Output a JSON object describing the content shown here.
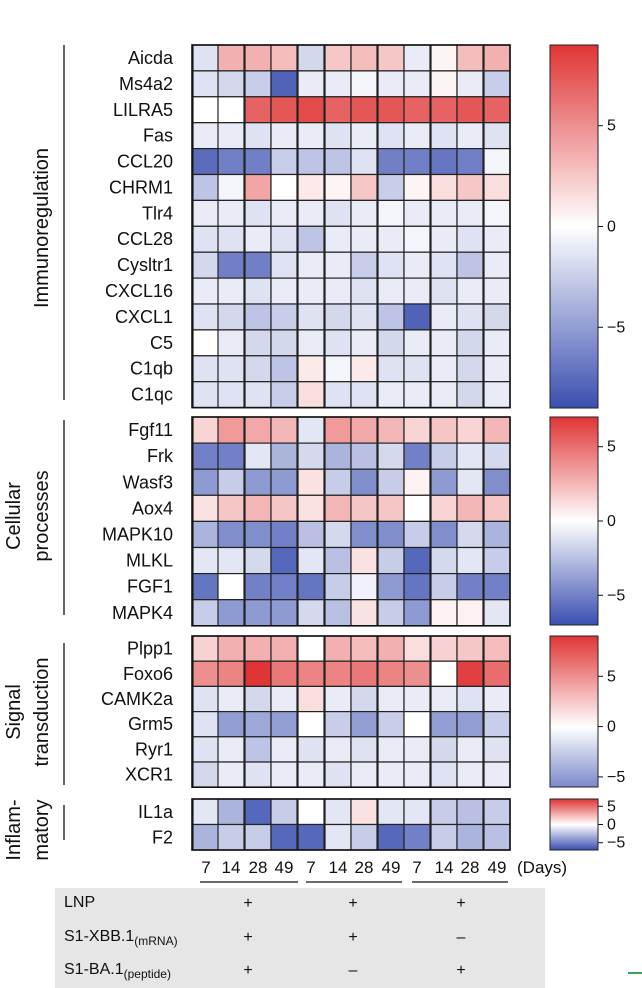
{
  "chart_data": {
    "type": "heatmap",
    "columns": [
      "7",
      "14",
      "28",
      "49",
      "7",
      "14",
      "28",
      "49",
      "7",
      "14",
      "28",
      "49"
    ],
    "columns_unit": "(Days)",
    "colorscale": {
      "low": "#3a4fb0",
      "mid": "#ffffff",
      "high": "#e03535"
    },
    "panels": [
      {
        "name": "Immunoregulation",
        "colorbar": {
          "ticks": [
            5,
            0,
            -5
          ],
          "range": [
            -9,
            9
          ]
        },
        "rows": [
          {
            "gene": "Aicda",
            "values": [
              -1.5,
              3.5,
              3.5,
              3,
              -2,
              2.5,
              3,
              2.5,
              -1,
              0.5,
              3,
              3.5
            ]
          },
          {
            "gene": "Ms4a2",
            "values": [
              -1.5,
              -2,
              -2.5,
              -8,
              -1,
              -1,
              -0.5,
              -1,
              -1,
              0.5,
              -1,
              -2.5
            ]
          },
          {
            "gene": "LILRA5",
            "values": [
              0,
              0,
              7,
              7.5,
              8,
              7,
              7.5,
              7.5,
              7,
              7,
              7.5,
              7
            ]
          },
          {
            "gene": "Fas",
            "values": [
              -1,
              -1,
              -1.5,
              -1,
              -1,
              -1.5,
              -1,
              -1.5,
              -1,
              -1.5,
              -1,
              -1.5
            ]
          },
          {
            "gene": "CCL20",
            "values": [
              -7.5,
              -6.5,
              -6.5,
              -2.5,
              -3,
              -3,
              -1.5,
              -6.5,
              -6.5,
              -7,
              -6.5,
              -0.5
            ]
          },
          {
            "gene": "CHRM1",
            "values": [
              -3,
              -0.5,
              4,
              0,
              1,
              0.5,
              2.5,
              -2.5,
              0.5,
              1.5,
              2.5,
              1.5
            ]
          },
          {
            "gene": "Tlr4",
            "values": [
              -1,
              -1,
              -1.5,
              -1,
              -1,
              -1.5,
              -1,
              -0.5,
              -1,
              -1,
              -1,
              -0.5
            ]
          },
          {
            "gene": "CCL28",
            "values": [
              -1.5,
              -1.5,
              -1,
              -1.5,
              -3,
              -1,
              -1,
              -1,
              -0.5,
              -1,
              -1.5,
              -1
            ]
          },
          {
            "gene": "Cysltr1",
            "values": [
              -2,
              -6.5,
              -6.5,
              -1.5,
              -1,
              -1,
              -2.5,
              -1.5,
              -1,
              -1.5,
              -3,
              -1
            ]
          },
          {
            "gene": "CXCL16",
            "values": [
              -1,
              -1,
              -1.5,
              -1,
              -1,
              -1,
              -1.5,
              -1,
              -1,
              -1.5,
              -1,
              -1
            ]
          },
          {
            "gene": "CXCL1",
            "values": [
              -1.5,
              -2,
              -3,
              -2.5,
              -1.5,
              -2,
              -1.5,
              -3,
              -8,
              -1,
              -1.5,
              -2
            ]
          },
          {
            "gene": "C5",
            "values": [
              0,
              -1,
              -2,
              -2,
              -1,
              -1.5,
              -1,
              -2,
              -1,
              -1,
              -2,
              -1
            ]
          },
          {
            "gene": "C1qb",
            "values": [
              -1.5,
              -1.5,
              -2,
              -3,
              1,
              -0.5,
              1,
              -1.5,
              -1.5,
              -1,
              -2,
              -1
            ]
          },
          {
            "gene": "C1qc",
            "values": [
              -1.5,
              -1.5,
              -1.5,
              -2.5,
              1.5,
              -1.5,
              -1.5,
              -1,
              -1,
              -1,
              -2,
              -1
            ]
          }
        ]
      },
      {
        "name": "Cellular processes",
        "colorbar": {
          "ticks": [
            5,
            0,
            -5
          ],
          "range": [
            -7,
            7
          ]
        },
        "rows": [
          {
            "gene": "Fgf11",
            "values": [
              1.5,
              3.5,
              3,
              2.5,
              -1,
              3.5,
              3,
              2.5,
              1.5,
              2,
              1.5,
              2.5
            ]
          },
          {
            "gene": "Frk",
            "values": [
              -5,
              -5,
              -1,
              -3,
              -1.5,
              -3,
              -2.5,
              -1.5,
              -5,
              -2,
              -1,
              -1.5
            ]
          },
          {
            "gene": "Wasf3",
            "values": [
              -4,
              -2,
              -4,
              -4,
              1,
              -2,
              -4.5,
              -2,
              0.5,
              -4,
              -1,
              -4.5
            ]
          },
          {
            "gene": "Aox4",
            "values": [
              1,
              2,
              2.5,
              2,
              1,
              2.5,
              2,
              2,
              0,
              1.5,
              2.5,
              2
            ]
          },
          {
            "gene": "MAPK10",
            "values": [
              -3,
              -4.5,
              -4.5,
              -5,
              -2.5,
              -1.5,
              -4.5,
              -4.5,
              -2,
              -4.5,
              -1.5,
              -3
            ]
          },
          {
            "gene": "MLKL",
            "values": [
              -1,
              -1,
              -1.5,
              -6,
              -1,
              -2.5,
              1,
              -2,
              -6,
              -1.5,
              -1,
              -2
            ]
          },
          {
            "gene": "FGF1",
            "values": [
              -5.5,
              0,
              -5,
              -5,
              -5.5,
              -2,
              -0.5,
              -4,
              -5.5,
              -2,
              -5,
              -5
            ]
          },
          {
            "gene": "MAPK4",
            "values": [
              -2,
              -4,
              -4,
              -4,
              -1.5,
              -2.5,
              1,
              -2,
              -4,
              0.5,
              0.5,
              -1
            ]
          }
        ]
      },
      {
        "name": "Signal transduction",
        "colorbar": {
          "ticks": [
            5,
            0,
            -5
          ],
          "range": [
            -6,
            9
          ]
        },
        "rows": [
          {
            "gene": "Plpp1",
            "values": [
              2,
              3.5,
              3.5,
              3.5,
              0,
              3.5,
              3,
              3.5,
              1.5,
              2,
              2.5,
              3
            ]
          },
          {
            "gene": "Foxo6",
            "values": [
              5,
              5.5,
              9,
              6,
              5.5,
              5.5,
              6,
              5.5,
              5,
              0,
              8.5,
              6.5
            ]
          },
          {
            "gene": "CAMK2a",
            "values": [
              -1.5,
              -1,
              -2,
              -1,
              1.5,
              -1,
              -2,
              -1,
              -1,
              -1,
              -1.5,
              -1
            ]
          },
          {
            "gene": "Grm5",
            "values": [
              -1.5,
              -5,
              -4.5,
              -5,
              0,
              -2.5,
              -5,
              -2.5,
              0,
              -5,
              -5,
              -2.5
            ]
          },
          {
            "gene": "Ryr1",
            "values": [
              -1.5,
              -1,
              -3,
              -1,
              -1.5,
              -1,
              -1.5,
              -1,
              -1,
              -2,
              -1,
              -1.5
            ]
          },
          {
            "gene": "XCR1",
            "values": [
              -2,
              -1,
              -1.5,
              -1,
              -1,
              -1.5,
              -1,
              -1,
              -1,
              -1.5,
              -1,
              -1
            ]
          }
        ]
      },
      {
        "name": "Inflammatory",
        "colorbar": {
          "ticks": [
            5,
            0,
            -5
          ],
          "range": [
            -7,
            7
          ]
        },
        "rows": [
          {
            "gene": "IL1a",
            "values": [
              -1,
              -3,
              -6,
              -2,
              0,
              -1,
              1,
              -1,
              -1,
              -2,
              -2.5,
              -2
            ]
          },
          {
            "gene": "F2",
            "values": [
              -3,
              -2,
              -2,
              -6,
              -6,
              -1,
              -2,
              -6,
              -5,
              -2,
              -3,
              -2.5
            ]
          }
        ]
      }
    ]
  },
  "panel_labels": {
    "immunoregulation": "Immunoregulation",
    "cellular_1": "Cellular",
    "cellular_2": "processes",
    "signal_1": "Signal",
    "signal_2": "transduction",
    "inflam_1": "Inflam-",
    "inflam_2": "matory"
  },
  "design": {
    "rows": [
      {
        "label": "LNP",
        "sub": "",
        "signs": [
          "+",
          "+",
          "+"
        ]
      },
      {
        "label": "S1-XBB.1",
        "sub": "(mRNA)",
        "signs": [
          "+",
          "+",
          "–"
        ]
      },
      {
        "label": "S1-BA.1",
        "sub": "(peptide)",
        "signs": [
          "+",
          "–",
          "+"
        ]
      }
    ]
  }
}
